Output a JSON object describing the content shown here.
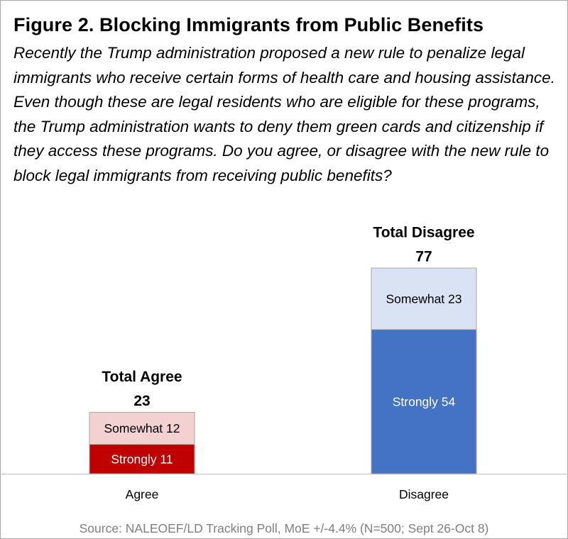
{
  "figure": {
    "title": "Figure 2. Blocking Immigrants from Public Benefits",
    "question": "Recently the Trump administration proposed a new rule to penalize legal immigrants who receive certain forms of health care and housing assistance. Even though these are legal residents who are eligible for these programs, the Trump administration wants to deny them green cards and citizenship if they access these programs. Do you agree, or disagree with the new rule to block legal immigrants from receiving public benefits?",
    "source": "Source: NALEOEF/LD Tracking Poll, MoE +/-4.4% (N=500; Sept 26-Oct 8)"
  },
  "chart_data": {
    "type": "bar",
    "stacked": true,
    "categories": [
      "Agree",
      "Disagree"
    ],
    "ylim": [
      0,
      77
    ],
    "grid": false,
    "legend": "none",
    "series": [
      {
        "name": "Strongly",
        "values": [
          11,
          54
        ],
        "labels": [
          "Strongly 11",
          "Strongly 54"
        ],
        "colors": [
          "#c00000",
          "#4472c4"
        ],
        "text_color": "#ffffff"
      },
      {
        "name": "Somewhat",
        "values": [
          12,
          23
        ],
        "labels": [
          "Somewhat 12",
          "Somewhat 23"
        ],
        "colors": [
          "#f2d1d0",
          "#dae3f3"
        ],
        "text_color": "#000000"
      }
    ],
    "totals": [
      {
        "label": "Total Agree",
        "value": "23"
      },
      {
        "label": "Total Disagree",
        "value": "77"
      }
    ],
    "axis_color": "#bfbfbf",
    "border_color": "#a6a6a6"
  }
}
